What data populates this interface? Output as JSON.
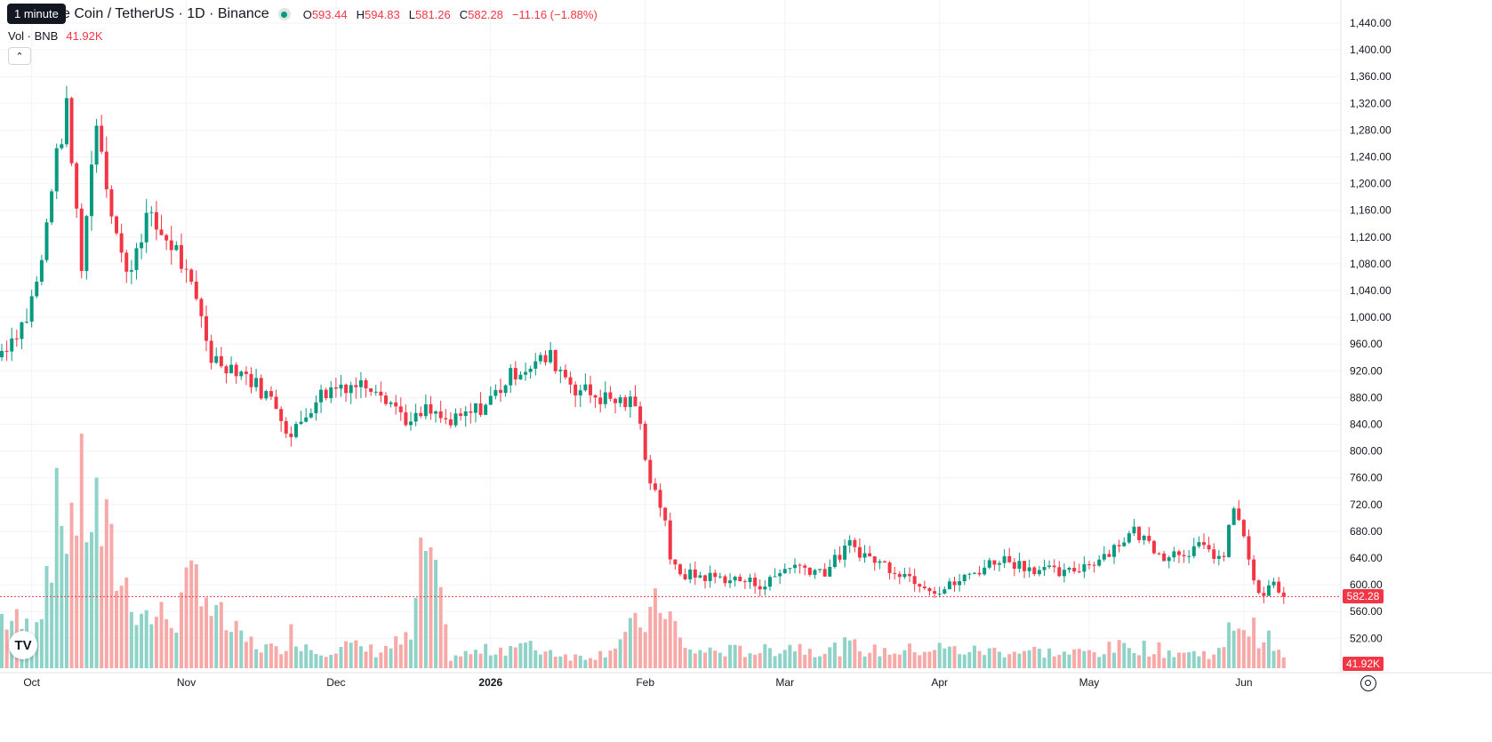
{
  "tooltip": "1 minute",
  "header": {
    "title": "e Coin / TetherUS · 1D · Binance",
    "ohlc": [
      {
        "key": "O",
        "value": "593.44"
      },
      {
        "key": "H",
        "value": "594.83"
      },
      {
        "key": "L",
        "value": "581.26"
      },
      {
        "key": "C",
        "value": "582.28"
      },
      {
        "key": "",
        "value": "−11.16 (−1.88%)"
      }
    ]
  },
  "volume_legend": {
    "label": "Vol · BNB",
    "value": "41.92K"
  },
  "logo_text": "TV",
  "colors": {
    "up": "#089981",
    "down": "#f23645",
    "up_vol": "#8fd3c8",
    "down_vol": "#f7a9a7",
    "grid": "#f0f3fa"
  },
  "chart_data": {
    "type": "candlestick",
    "title": "",
    "ylim": [
      500,
      1450
    ],
    "y_ticks": [
      "1,440.00",
      "1,400.00",
      "1,360.00",
      "1,320.00",
      "1,280.00",
      "1,240.00",
      "1,200.00",
      "1,160.00",
      "1,120.00",
      "1,080.00",
      "1,040.00",
      "1,000.00",
      "960.00",
      "920.00",
      "880.00",
      "840.00",
      "800.00",
      "760.00",
      "720.00",
      "680.00",
      "640.00",
      "600.00",
      "560.00",
      "520.00"
    ],
    "x_ticks": [
      {
        "label": "Oct",
        "day": 6
      },
      {
        "label": "Nov",
        "day": 37
      },
      {
        "label": "Dec",
        "day": 67
      },
      {
        "label": "2026",
        "day": 98
      },
      {
        "label": "Feb",
        "day": 129
      },
      {
        "label": "Mar",
        "day": 157
      },
      {
        "label": "Apr",
        "day": 188
      },
      {
        "label": "May",
        "day": 218
      },
      {
        "label": "Jun",
        "day": 249
      }
    ],
    "last_price": {
      "value": 582.28,
      "label": "582.28"
    },
    "last_volume_label": "41.92K",
    "anchors": [
      [
        0,
        950,
        900
      ],
      [
        5,
        1000,
        700
      ],
      [
        8,
        1080,
        1200
      ],
      [
        10,
        1200,
        2400
      ],
      [
        13,
        1310,
        2700
      ],
      [
        16,
        1080,
        2900
      ],
      [
        19,
        1300,
        2700
      ],
      [
        22,
        1160,
        1900
      ],
      [
        25,
        1060,
        1400
      ],
      [
        29,
        1150,
        900
      ],
      [
        35,
        1100,
        900
      ],
      [
        40,
        1000,
        1800
      ],
      [
        42,
        940,
        1000
      ],
      [
        48,
        920,
        500
      ],
      [
        55,
        870,
        300
      ],
      [
        58,
        820,
        600
      ],
      [
        63,
        880,
        300
      ],
      [
        68,
        900,
        400
      ],
      [
        75,
        900,
        300
      ],
      [
        82,
        840,
        500
      ],
      [
        85,
        860,
        2200
      ],
      [
        90,
        840,
        200
      ],
      [
        97,
        870,
        300
      ],
      [
        103,
        920,
        400
      ],
      [
        110,
        940,
        300
      ],
      [
        115,
        895,
        200
      ],
      [
        120,
        880,
        250
      ],
      [
        127,
        870,
        700
      ],
      [
        130,
        760,
        900
      ],
      [
        133,
        700,
        1200
      ],
      [
        134,
        630,
        900
      ],
      [
        137,
        615,
        300
      ],
      [
        145,
        610,
        300
      ],
      [
        153,
        600,
        300
      ],
      [
        158,
        630,
        400
      ],
      [
        165,
        620,
        300
      ],
      [
        170,
        660,
        400
      ],
      [
        174,
        640,
        300
      ],
      [
        180,
        620,
        300
      ],
      [
        188,
        590,
        350
      ],
      [
        193,
        610,
        300
      ],
      [
        200,
        640,
        300
      ],
      [
        207,
        625,
        300
      ],
      [
        213,
        615,
        250
      ],
      [
        220,
        640,
        300
      ],
      [
        227,
        680,
        400
      ],
      [
        233,
        645,
        300
      ],
      [
        240,
        655,
        250
      ],
      [
        245,
        640,
        300
      ],
      [
        247,
        720,
        900
      ],
      [
        250,
        640,
        700
      ],
      [
        252,
        580,
        600
      ],
      [
        255,
        600,
        400
      ],
      [
        257,
        582.28,
        150
      ]
    ]
  }
}
